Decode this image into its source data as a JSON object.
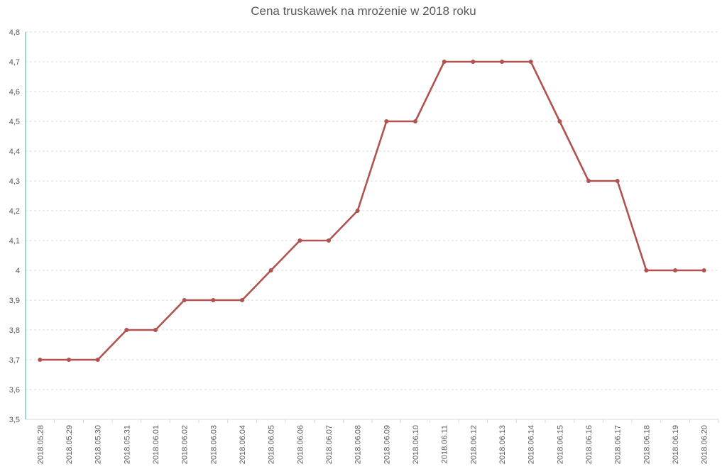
{
  "chart_data": {
    "type": "line",
    "title": "Cena truskawek na mrożenie w 2018 roku",
    "xlabel": "",
    "ylabel": "",
    "categories": [
      "2018.05.28",
      "2018.05.29",
      "2018.05.30",
      "2018.05.31",
      "2018.06.01",
      "2018.06.02",
      "2018.06.03",
      "2018.06.04",
      "2018.06.05",
      "2018.06.06",
      "2018.06.07",
      "2018.06.08",
      "2018.06.09",
      "2018.06.10",
      "2018.06.11",
      "2018.06.12",
      "2018.06.13",
      "2018.06.14",
      "2018.06.15",
      "2018.06.16",
      "2018.06.17",
      "2018.06.18",
      "2018.06.19",
      "2018.06.20"
    ],
    "series": [
      {
        "values": [
          3.7,
          3.7,
          3.7,
          3.8,
          3.8,
          3.9,
          3.9,
          3.9,
          4.0,
          4.1,
          4.1,
          4.2,
          4.5,
          4.5,
          4.7,
          4.7,
          4.7,
          4.7,
          4.5,
          4.3,
          4.3,
          4.0,
          4.0,
          4.0
        ],
        "color": "#b05350"
      }
    ],
    "ylim": [
      3.5,
      4.8
    ],
    "yticks": [
      3.5,
      3.6,
      3.7,
      3.8,
      3.9,
      4.0,
      4.1,
      4.2,
      4.3,
      4.4,
      4.5,
      4.6,
      4.7,
      4.8
    ],
    "ytick_labels": [
      "3,5",
      "3,6",
      "3,7",
      "3,8",
      "3,9",
      "4",
      "4,1",
      "4,2",
      "4,3",
      "4,4",
      "4,5",
      "4,6",
      "4,7",
      "4,8"
    ],
    "grid": true,
    "gridline_style": "dashed",
    "legend": "none",
    "colors": {
      "axis": "#7fc9c4",
      "grid": "#d9d9d9",
      "text": "#595959"
    }
  }
}
